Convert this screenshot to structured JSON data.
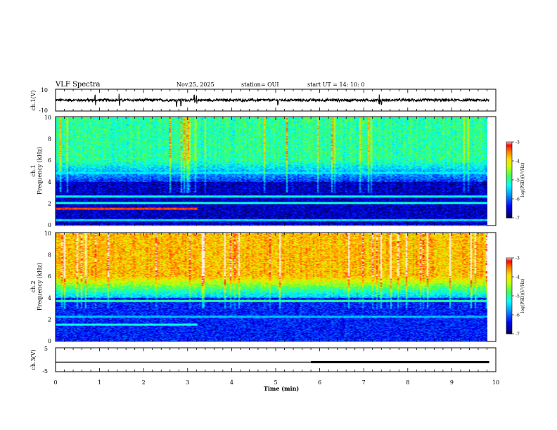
{
  "header": {
    "title": "VLF Spectra",
    "date": "Nov.25, 2025",
    "station": "station= OUI",
    "start_time": "start  UT  =   14: 10: 0"
  },
  "chart_data": [
    {
      "id": "ch1-waveform",
      "type": "line",
      "ylabel": "ch.1(V)",
      "ylim": [
        -10,
        10
      ],
      "yticks": [
        "10",
        "-10"
      ],
      "xlim": [
        0,
        10
      ],
      "description_series": [
        {
          "name": "ch.1 amplitude",
          "baseline": 0,
          "noise_amplitude": 1.5,
          "spikes_at_min": [
            0.9,
            1.45,
            2.75,
            2.85,
            3.15,
            3.2,
            5.05,
            7.35,
            7.4
          ]
        }
      ]
    },
    {
      "id": "ch1-spectrogram",
      "type": "heatmap",
      "ylabel": "Frequency (kHz)",
      "channel_label": "ch.1",
      "xlim": [
        0,
        9.85
      ],
      "ylim": [
        0,
        10
      ],
      "yticks": [
        "0",
        "2",
        "4",
        "6",
        "8",
        "10"
      ],
      "colorbar": {
        "label": "log(PSD)(V²/Hz)",
        "range": [
          -7,
          -3
        ],
        "ticks": [
          "-3",
          "-4",
          "-5",
          "-6",
          "-7"
        ]
      },
      "background_level": {
        "above_6kHz": -5.0,
        "between_4_6kHz": -6.2,
        "below_4kHz": -6.6
      },
      "bands": [
        {
          "freq_khz": 1.45,
          "level": -3.3,
          "x_end_min": 3.25
        },
        {
          "freq_khz": 2.0,
          "level": -5.2,
          "x_end_min": 9.85
        },
        {
          "freq_khz": 2.6,
          "level": -5.3,
          "x_end_min": 9.85
        },
        {
          "freq_khz": 4.8,
          "level": -5.4,
          "x_end_min": 9.85
        },
        {
          "freq_khz": 0.4,
          "level": -5.5,
          "x_end_min": 9.85
        }
      ]
    },
    {
      "id": "ch2-spectrogram",
      "type": "heatmap",
      "ylabel": "Frequency (kHz)",
      "channel_label": "ch.2",
      "xlim": [
        0,
        9.85
      ],
      "ylim": [
        0,
        10
      ],
      "yticks": [
        "0",
        "2",
        "4",
        "6",
        "8",
        "10"
      ],
      "colorbar": {
        "label": "log(PSD)(V²/Hz)",
        "range": [
          -7,
          -3
        ],
        "ticks": [
          "-3",
          "-4",
          "-5",
          "-6",
          "-7"
        ]
      },
      "background_level": {
        "above_6kHz": -3.8,
        "between_4_6kHz": -5.6,
        "below_4kHz": -6.3
      },
      "bands": [
        {
          "freq_khz": 3.7,
          "level": -5.0,
          "x_end_min": 9.85
        },
        {
          "freq_khz": 1.5,
          "level": -5.2,
          "x_end_min": 3.25
        },
        {
          "freq_khz": 2.2,
          "level": -5.6,
          "x_end_min": 9.85
        }
      ]
    },
    {
      "id": "ch3-waveform",
      "type": "line",
      "ylabel": "ch.3(V)",
      "ylim": [
        -5,
        5
      ],
      "yticks": [
        "5",
        "-5"
      ],
      "xlim": [
        0,
        10
      ],
      "description_series": [
        {
          "name": "ch.3 level",
          "value": -1,
          "thin_until_min": 5.8,
          "thick_from_min": 5.8,
          "end_min": 9.85
        }
      ]
    }
  ],
  "x_axis": {
    "label": "Time  (min)",
    "ticks": [
      "0",
      "1",
      "2",
      "3",
      "4",
      "5",
      "6",
      "7",
      "8",
      "9",
      "10"
    ],
    "range": [
      0,
      10
    ]
  },
  "colors": {
    "frame": "#000000",
    "colormap": [
      "#000060",
      "#0000ff",
      "#00a0ff",
      "#00ffff",
      "#40ff60",
      "#c8ff00",
      "#ffe000",
      "#ff8000",
      "#ff0000",
      "#ffffff"
    ]
  }
}
